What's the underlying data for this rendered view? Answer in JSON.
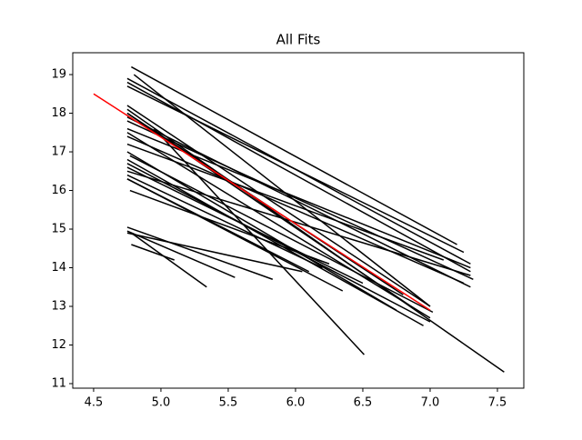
{
  "chart_data": {
    "type": "line",
    "title": "All Fits",
    "xlim": [
      4.345,
      7.696
    ],
    "ylim": [
      10.882,
      19.566
    ],
    "xticks": [
      4.5,
      {
        "value": 5,
        "label": "5.0"
      },
      5.5,
      {
        "value": 6,
        "label": "6.0"
      },
      6.5,
      {
        "value": 7,
        "label": "7.0"
      },
      7.5
    ],
    "yticks": [
      11,
      12,
      13,
      14,
      15,
      16,
      17,
      18,
      19
    ],
    "grid": false,
    "series": [
      {
        "color": "#000000",
        "x": [
          4.78,
          7.2
        ],
        "values": [
          19.2,
          14.6
        ]
      },
      {
        "color": "#000000",
        "x": [
          4.8,
          7.0
        ],
        "values": [
          19.0,
          13.0
        ]
      },
      {
        "color": "#000000",
        "x": [
          4.75,
          7.3
        ],
        "values": [
          18.9,
          14.1
        ]
      },
      {
        "color": "#000000",
        "x": [
          4.75,
          7.3
        ],
        "values": [
          18.8,
          13.9
        ]
      },
      {
        "color": "#000000",
        "x": [
          4.75,
          7.25
        ],
        "values": [
          18.7,
          14.4
        ]
      },
      {
        "color": "#000000",
        "x": [
          4.75,
          7.0
        ],
        "values": [
          18.2,
          13.0
        ]
      },
      {
        "color": "#000000",
        "x": [
          4.75,
          7.55
        ],
        "values": [
          18.1,
          11.3
        ]
      },
      {
        "color": "#000000",
        "x": [
          4.75,
          6.9
        ],
        "values": [
          18.0,
          12.9
        ]
      },
      {
        "color": "#000000",
        "x": [
          4.75,
          6.8
        ],
        "values": [
          18.0,
          13.3
        ]
      },
      {
        "color": "#000000",
        "x": [
          4.75,
          7.3
        ],
        "values": [
          17.9,
          13.5
        ]
      },
      {
        "color": "#000000",
        "x": [
          4.75,
          7.32
        ],
        "values": [
          17.8,
          13.7
        ]
      },
      {
        "color": "#000000",
        "x": [
          4.75,
          7.3
        ],
        "values": [
          17.6,
          14.0
        ]
      },
      {
        "color": "#000000",
        "x": [
          4.75,
          7.0
        ],
        "values": [
          17.5,
          12.7
        ]
      },
      {
        "color": "#000000",
        "x": [
          4.75,
          7.25
        ],
        "values": [
          17.4,
          13.6
        ]
      },
      {
        "color": "#000000",
        "x": [
          4.75,
          7.1
        ],
        "values": [
          17.2,
          14.2
        ]
      },
      {
        "color": "#000000",
        "x": [
          4.75,
          6.75
        ],
        "values": [
          17.0,
          12.9
        ]
      },
      {
        "color": "#000000",
        "x": [
          4.77,
          7.02
        ],
        "values": [
          16.9,
          12.85
        ]
      },
      {
        "color": "#000000",
        "x": [
          4.75,
          6.95
        ],
        "values": [
          16.8,
          12.5
        ]
      },
      {
        "color": "#000000",
        "x": [
          4.75,
          7.0
        ],
        "values": [
          16.7,
          12.6
        ]
      },
      {
        "color": "#000000",
        "x": [
          4.75,
          6.5
        ],
        "values": [
          16.6,
          13.6
        ]
      },
      {
        "color": "#000000",
        "x": [
          4.75,
          7.3
        ],
        "values": [
          16.5,
          13.8
        ]
      },
      {
        "color": "#000000",
        "x": [
          4.75,
          6.2
        ],
        "values": [
          16.4,
          14.0
        ]
      },
      {
        "color": "#000000",
        "x": [
          4.75,
          6.1
        ],
        "values": [
          16.3,
          13.9
        ]
      },
      {
        "color": "#000000",
        "x": [
          4.75,
          6.35
        ],
        "values": [
          16.3,
          13.4
        ]
      },
      {
        "color": "#000000",
        "x": [
          4.77,
          6.25
        ],
        "values": [
          16.0,
          14.1
        ]
      },
      {
        "color": "#000000",
        "x": [
          4.95,
          6.51
        ],
        "values": [
          17.6,
          11.75
        ]
      },
      {
        "color": "#000000",
        "x": [
          4.75,
          5.83
        ],
        "values": [
          15.05,
          13.7
        ]
      },
      {
        "color": "#000000",
        "x": [
          4.75,
          6.05
        ],
        "values": [
          14.9,
          13.9
        ]
      },
      {
        "color": "#000000",
        "x": [
          4.75,
          5.55
        ],
        "values": [
          14.95,
          13.75
        ]
      },
      {
        "color": "#000000",
        "x": [
          4.78,
          5.34
        ],
        "values": [
          14.9,
          13.5
        ]
      },
      {
        "color": "#000000",
        "x": [
          4.78,
          5.1
        ],
        "values": [
          14.6,
          14.2
        ]
      },
      {
        "color": "#ff0000",
        "x": [
          4.5,
          7.0
        ],
        "values": [
          18.5,
          12.9
        ]
      }
    ]
  }
}
